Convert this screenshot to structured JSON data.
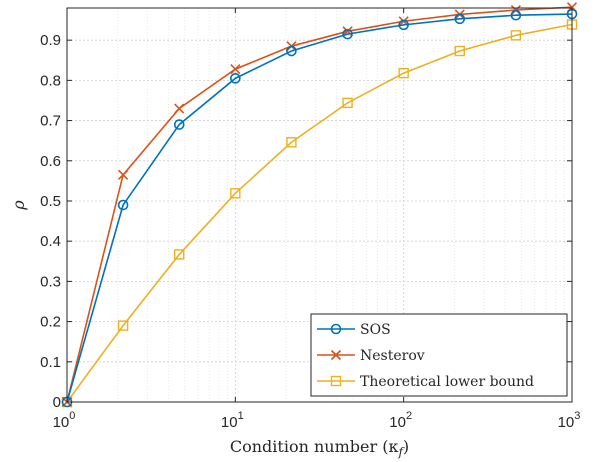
{
  "chart_data": {
    "type": "line",
    "xlabel": "Condition number (κ",
    "xlabel_sub": "f",
    "xlabel_close": ")",
    "ylabel": "ρ",
    "x_scale": "log",
    "xlim": [
      1,
      1000
    ],
    "ylim": [
      0,
      0.98
    ],
    "grid": true,
    "legend_position": "bottom-right",
    "x_ticks": [
      {
        "value": 1,
        "base": "10",
        "exp": "0"
      },
      {
        "value": 10,
        "base": "10",
        "exp": "1"
      },
      {
        "value": 100,
        "base": "10",
        "exp": "2"
      },
      {
        "value": 1000,
        "base": "10",
        "exp": "3"
      }
    ],
    "y_ticks": [
      {
        "value": 0,
        "label": "0"
      },
      {
        "value": 0.1,
        "label": "0.1"
      },
      {
        "value": 0.2,
        "label": "0.2"
      },
      {
        "value": 0.3,
        "label": "0.3"
      },
      {
        "value": 0.4,
        "label": "0.4"
      },
      {
        "value": 0.5,
        "label": "0.5"
      },
      {
        "value": 0.6,
        "label": "0.6"
      },
      {
        "value": 0.7,
        "label": "0.7"
      },
      {
        "value": 0.8,
        "label": "0.8"
      },
      {
        "value": 0.9,
        "label": "0.9"
      }
    ],
    "x": [
      1,
      2.154,
      4.642,
      10,
      21.54,
      46.42,
      100,
      215.4,
      464.2,
      1000
    ],
    "series": [
      {
        "name": "SOS",
        "color": "#0072BD",
        "marker": "circle",
        "values": [
          0,
          0.49,
          0.69,
          0.805,
          0.873,
          0.915,
          0.938,
          0.953,
          0.962,
          0.965
        ]
      },
      {
        "name": "Nesterov",
        "color": "#D95319",
        "marker": "x",
        "values": [
          0,
          0.565,
          0.73,
          0.828,
          0.885,
          0.922,
          0.947,
          0.964,
          0.975,
          0.982
        ]
      },
      {
        "name": "Theoretical lower bound",
        "color": "#EDB120",
        "marker": "square",
        "values": [
          0,
          0.19,
          0.367,
          0.519,
          0.646,
          0.744,
          0.818,
          0.873,
          0.912,
          0.939
        ]
      }
    ]
  }
}
